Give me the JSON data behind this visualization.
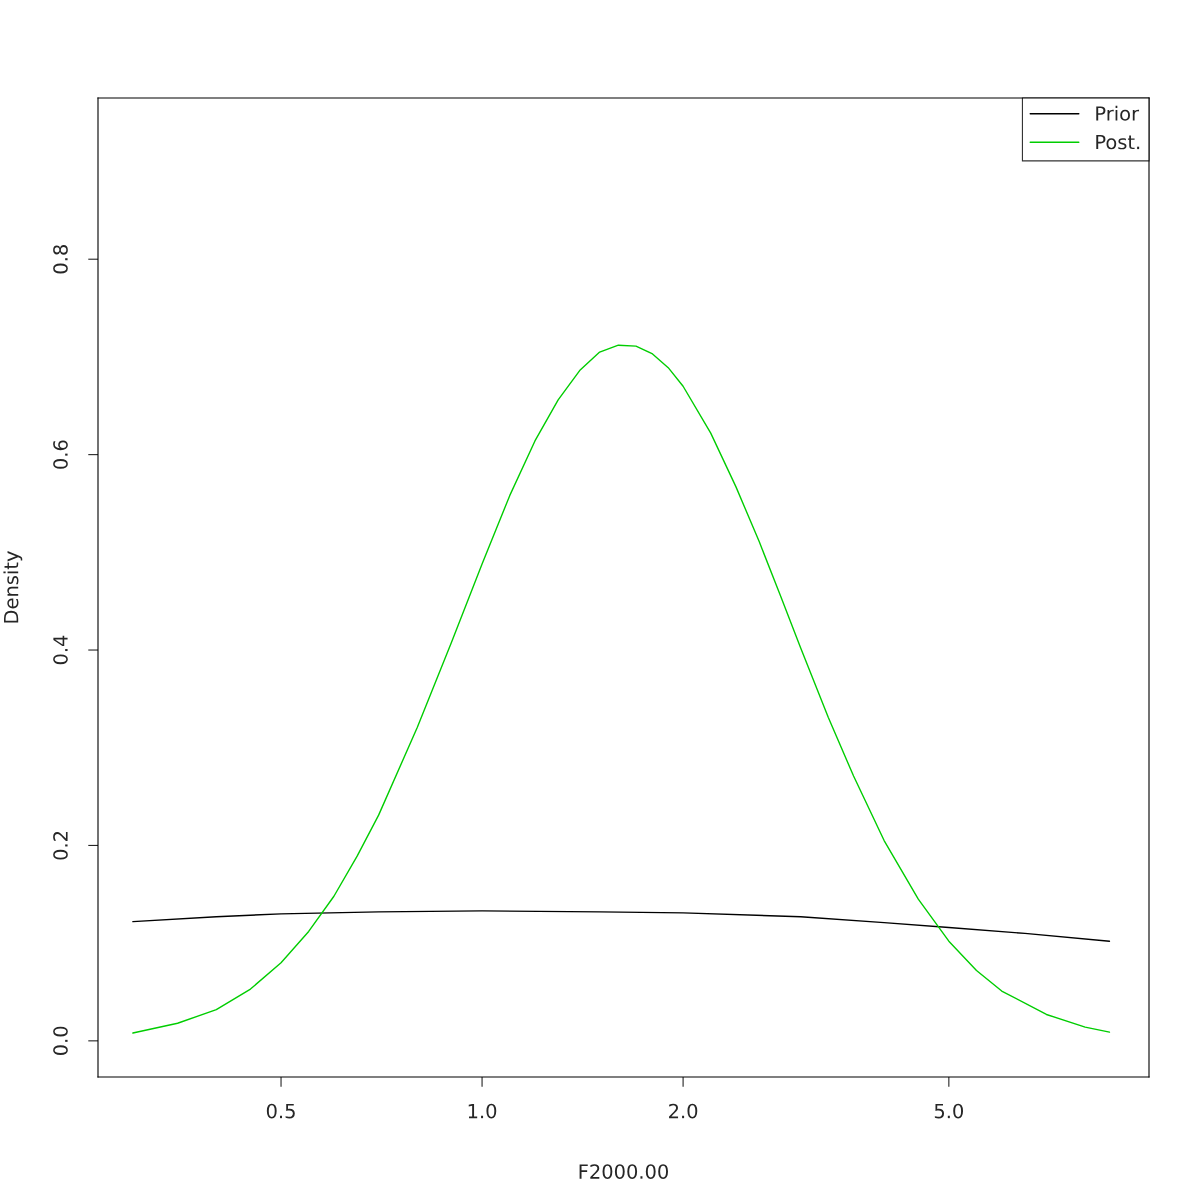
{
  "chart_data": {
    "type": "line",
    "xlabel": "F2000.00",
    "ylabel": "Density",
    "log": "x",
    "xlim": [
      0.266,
      9.97
    ],
    "ylim": [
      -0.037,
      0.965
    ],
    "xticks": [
      {
        "value": 0.5,
        "label": "0.5"
      },
      {
        "value": 1,
        "label": "1.0"
      },
      {
        "value": 2,
        "label": "2.0"
      },
      {
        "value": 5,
        "label": "5.0"
      }
    ],
    "yticks": [
      {
        "value": 0,
        "label": "0.0"
      },
      {
        "value": 0.2,
        "label": "0.2"
      },
      {
        "value": 0.4,
        "label": "0.4"
      },
      {
        "value": 0.6,
        "label": "0.6"
      },
      {
        "value": 0.8,
        "label": "0.8"
      }
    ],
    "grid": false,
    "legend": "top right",
    "series": [
      {
        "name": "Prior",
        "color": "#000000",
        "x": [
          0.3,
          0.4,
          0.5,
          0.7,
          1.0,
          1.5,
          2.0,
          3.0,
          4.0,
          5.0,
          6.5,
          8.7
        ],
        "values": [
          0.122,
          0.127,
          0.13,
          0.132,
          0.133,
          0.132,
          0.131,
          0.127,
          0.121,
          0.116,
          0.11,
          0.102
        ]
      },
      {
        "name": "Post.",
        "color": "#00cd00",
        "x": [
          0.3,
          0.35,
          0.4,
          0.45,
          0.5,
          0.55,
          0.6,
          0.65,
          0.7,
          0.8,
          0.9,
          1.0,
          1.1,
          1.2,
          1.3,
          1.4,
          1.5,
          1.6,
          1.7,
          1.8,
          1.9,
          2.0,
          2.2,
          2.4,
          2.6,
          2.8,
          3.0,
          3.3,
          3.6,
          4.0,
          4.5,
          5.0,
          5.5,
          6,
          7,
          8,
          8.7
        ],
        "values": [
          0.008,
          0.018,
          0.032,
          0.053,
          0.08,
          0.112,
          0.148,
          0.189,
          0.231,
          0.321,
          0.408,
          0.488,
          0.558,
          0.614,
          0.656,
          0.686,
          0.705,
          0.712,
          0.711,
          0.703,
          0.689,
          0.67,
          0.622,
          0.567,
          0.511,
          0.455,
          0.402,
          0.331,
          0.271,
          0.205,
          0.145,
          0.102,
          0.072,
          0.051,
          0.027,
          0.014,
          0.009
        ]
      }
    ]
  }
}
